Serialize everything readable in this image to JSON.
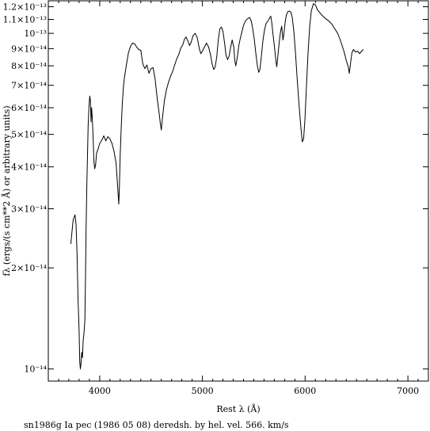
{
  "chart_data": {
    "type": "line",
    "title": "",
    "caption": "sn1986g Ia pec (1986 05 08) deredsh. by hel. vel.   566. km/s",
    "xlabel": "Rest λ (Å)",
    "ylabel": "fλ (ergs/(s cm**2 Å) or arbitrary units)",
    "x_scale": "linear",
    "y_scale": "log",
    "xlim": [
      3500,
      7200
    ],
    "ylim": [
      9.2e-15,
      1.25e-13
    ],
    "x_ticks": [
      {
        "value": 4000,
        "label": "4000"
      },
      {
        "value": 5000,
        "label": "5000"
      },
      {
        "value": 6000,
        "label": "6000"
      },
      {
        "value": 7000,
        "label": "7000"
      }
    ],
    "y_ticks": [
      {
        "value": 1e-14,
        "label": "10⁻¹⁴"
      },
      {
        "value": 2e-14,
        "label": "2×10⁻¹⁴"
      },
      {
        "value": 3e-14,
        "label": "3×10⁻¹⁴"
      },
      {
        "value": 4e-14,
        "label": "4×10⁻¹⁴"
      },
      {
        "value": 5e-14,
        "label": "5×10⁻¹⁴"
      },
      {
        "value": 6e-14,
        "label": "6×10⁻¹⁴"
      },
      {
        "value": 7e-14,
        "label": "7×10⁻¹⁴"
      },
      {
        "value": 8e-14,
        "label": "8×10⁻¹⁴"
      },
      {
        "value": 9e-14,
        "label": "9×10⁻¹⁴"
      },
      {
        "value": 1e-13,
        "label": "10⁻¹³"
      },
      {
        "value": 1.1e-13,
        "label": "1.1×10⁻¹³"
      },
      {
        "value": 1.2e-13,
        "label": "1.2×10⁻¹³"
      }
    ],
    "series": [
      {
        "color": "#000000",
        "points": [
          [
            3720,
            2.36e-14
          ],
          [
            3730,
            2.55e-14
          ],
          [
            3742,
            2.78e-14
          ],
          [
            3750,
            2.82e-14
          ],
          [
            3760,
            2.88e-14
          ],
          [
            3770,
            2.7e-14
          ],
          [
            3780,
            2.2e-14
          ],
          [
            3790,
            1.6e-14
          ],
          [
            3800,
            1.3e-14
          ],
          [
            3806,
            1.05e-14
          ],
          [
            3812,
            1e-14
          ],
          [
            3818,
            1.04e-14
          ],
          [
            3825,
            1.12e-14
          ],
          [
            3832,
            1.08e-14
          ],
          [
            3840,
            1.22e-14
          ],
          [
            3848,
            1.28e-14
          ],
          [
            3856,
            1.4e-14
          ],
          [
            3862,
            1.9e-14
          ],
          [
            3868,
            2.6e-14
          ],
          [
            3875,
            3.5e-14
          ],
          [
            3882,
            4.45e-14
          ],
          [
            3888,
            5.3e-14
          ],
          [
            3896,
            6.1e-14
          ],
          [
            3904,
            6.5e-14
          ],
          [
            3910,
            6.28e-14
          ],
          [
            3916,
            5.45e-14
          ],
          [
            3922,
            6e-14
          ],
          [
            3928,
            5.6e-14
          ],
          [
            3936,
            4.9e-14
          ],
          [
            3944,
            4.15e-14
          ],
          [
            3952,
            3.95e-14
          ],
          [
            3960,
            4.05e-14
          ],
          [
            3970,
            4.4e-14
          ],
          [
            3985,
            4.52e-14
          ],
          [
            4000,
            4.7e-14
          ],
          [
            4020,
            4.8e-14
          ],
          [
            4040,
            4.95e-14
          ],
          [
            4060,
            4.78e-14
          ],
          [
            4080,
            4.92e-14
          ],
          [
            4100,
            4.85e-14
          ],
          [
            4120,
            4.7e-14
          ],
          [
            4140,
            4.45e-14
          ],
          [
            4160,
            4.1e-14
          ],
          [
            4172,
            3.6e-14
          ],
          [
            4180,
            3.3e-14
          ],
          [
            4186,
            3.1e-14
          ],
          [
            4192,
            3.5e-14
          ],
          [
            4200,
            4.35e-14
          ],
          [
            4210,
            5.25e-14
          ],
          [
            4220,
            6.15e-14
          ],
          [
            4230,
            6.85e-14
          ],
          [
            4240,
            7.35e-14
          ],
          [
            4260,
            8.05e-14
          ],
          [
            4280,
            8.75e-14
          ],
          [
            4300,
            9.15e-14
          ],
          [
            4320,
            9.35e-14
          ],
          [
            4340,
            9.3e-14
          ],
          [
            4360,
            9.1e-14
          ],
          [
            4380,
            8.95e-14
          ],
          [
            4400,
            8.9e-14
          ],
          [
            4420,
            8.1e-14
          ],
          [
            4440,
            7.85e-14
          ],
          [
            4460,
            8.05e-14
          ],
          [
            4480,
            7.6e-14
          ],
          [
            4500,
            7.85e-14
          ],
          [
            4520,
            7.9e-14
          ],
          [
            4540,
            7.3e-14
          ],
          [
            4560,
            6.4e-14
          ],
          [
            4580,
            5.75e-14
          ],
          [
            4590,
            5.4e-14
          ],
          [
            4600,
            5.15e-14
          ],
          [
            4610,
            5.55e-14
          ],
          [
            4630,
            6.3e-14
          ],
          [
            4650,
            6.8e-14
          ],
          [
            4670,
            7.15e-14
          ],
          [
            4690,
            7.45e-14
          ],
          [
            4710,
            7.7e-14
          ],
          [
            4730,
            8.05e-14
          ],
          [
            4750,
            8.4e-14
          ],
          [
            4770,
            8.65e-14
          ],
          [
            4790,
            9.05e-14
          ],
          [
            4810,
            9.25e-14
          ],
          [
            4825,
            9.6e-14
          ],
          [
            4840,
            9.75e-14
          ],
          [
            4858,
            9.5e-14
          ],
          [
            4875,
            9.2e-14
          ],
          [
            4890,
            9.4e-14
          ],
          [
            4910,
            9.85e-14
          ],
          [
            4930,
            1e-13
          ],
          [
            4950,
            9.7e-14
          ],
          [
            4970,
            9e-14
          ],
          [
            4985,
            8.7e-14
          ],
          [
            5000,
            8.85e-14
          ],
          [
            5020,
            9.1e-14
          ],
          [
            5040,
            9.35e-14
          ],
          [
            5060,
            9.1e-14
          ],
          [
            5080,
            8.6e-14
          ],
          [
            5095,
            8.1e-14
          ],
          [
            5110,
            7.8e-14
          ],
          [
            5125,
            7.95e-14
          ],
          [
            5140,
            8.55e-14
          ],
          [
            5155,
            9.6e-14
          ],
          [
            5170,
            1.03e-13
          ],
          [
            5185,
            1.045e-13
          ],
          [
            5200,
            1.015e-13
          ],
          [
            5215,
            9.4e-14
          ],
          [
            5230,
            8.6e-14
          ],
          [
            5245,
            8.35e-14
          ],
          [
            5260,
            8.55e-14
          ],
          [
            5275,
            9.1e-14
          ],
          [
            5290,
            9.55e-14
          ],
          [
            5305,
            9.1e-14
          ],
          [
            5315,
            8.3e-14
          ],
          [
            5325,
            8e-14
          ],
          [
            5340,
            8.5e-14
          ],
          [
            5355,
            9.2e-14
          ],
          [
            5370,
            9.7e-14
          ],
          [
            5385,
            1.01e-13
          ],
          [
            5400,
            1.055e-13
          ],
          [
            5420,
            1.09e-13
          ],
          [
            5440,
            1.105e-13
          ],
          [
            5460,
            1.115e-13
          ],
          [
            5475,
            1.09e-13
          ],
          [
            5490,
            1.03e-13
          ],
          [
            5505,
            9.6e-14
          ],
          [
            5520,
            8.7e-14
          ],
          [
            5535,
            8e-14
          ],
          [
            5548,
            7.65e-14
          ],
          [
            5560,
            7.8e-14
          ],
          [
            5575,
            8.6e-14
          ],
          [
            5590,
            9.55e-14
          ],
          [
            5605,
            1.025e-13
          ],
          [
            5620,
            1.07e-13
          ],
          [
            5635,
            1.085e-13
          ],
          [
            5650,
            1.105e-13
          ],
          [
            5665,
            1.125e-13
          ],
          [
            5675,
            1.075e-13
          ],
          [
            5685,
            1.005e-13
          ],
          [
            5700,
            9.2e-14
          ],
          [
            5712,
            8.45e-14
          ],
          [
            5724,
            7.95e-14
          ],
          [
            5735,
            8.55e-14
          ],
          [
            5748,
            9.4e-14
          ],
          [
            5760,
            1.01e-13
          ],
          [
            5772,
            1.05e-13
          ],
          [
            5784,
            9.55e-14
          ],
          [
            5794,
            1e-13
          ],
          [
            5806,
            1.085e-13
          ],
          [
            5818,
            1.135e-13
          ],
          [
            5832,
            1.16e-13
          ],
          [
            5848,
            1.165e-13
          ],
          [
            5862,
            1.155e-13
          ],
          [
            5876,
            1.11e-13
          ],
          [
            5890,
            1.01e-13
          ],
          [
            5905,
            8.85e-14
          ],
          [
            5920,
            7.55e-14
          ],
          [
            5935,
            6.45e-14
          ],
          [
            5950,
            5.65e-14
          ],
          [
            5962,
            5.1e-14
          ],
          [
            5972,
            4.75e-14
          ],
          [
            5985,
            4.85e-14
          ],
          [
            5998,
            5.55e-14
          ],
          [
            6012,
            6.9e-14
          ],
          [
            6028,
            8.75e-14
          ],
          [
            6045,
            1.055e-13
          ],
          [
            6060,
            1.165e-13
          ],
          [
            6080,
            1.225e-13
          ],
          [
            6100,
            1.215e-13
          ],
          [
            6120,
            1.175e-13
          ],
          [
            6140,
            1.155e-13
          ],
          [
            6160,
            1.135e-13
          ],
          [
            6180,
            1.12e-13
          ],
          [
            6200,
            1.105e-13
          ],
          [
            6220,
            1.095e-13
          ],
          [
            6240,
            1.08e-13
          ],
          [
            6260,
            1.065e-13
          ],
          [
            6280,
            1.04e-13
          ],
          [
            6300,
            1.02e-13
          ],
          [
            6320,
            9.95e-14
          ],
          [
            6340,
            9.6e-14
          ],
          [
            6360,
            9.2e-14
          ],
          [
            6380,
            8.8e-14
          ],
          [
            6400,
            8.3e-14
          ],
          [
            6420,
            7.95e-14
          ],
          [
            6430,
            7.6e-14
          ],
          [
            6440,
            8.05e-14
          ],
          [
            6455,
            8.75e-14
          ],
          [
            6470,
            8.95e-14
          ],
          [
            6490,
            8.8e-14
          ],
          [
            6510,
            8.85e-14
          ],
          [
            6530,
            8.7e-14
          ],
          [
            6550,
            8.85e-14
          ],
          [
            6565,
            8.95e-14
          ]
        ]
      }
    ],
    "grid": false,
    "legend": "none"
  }
}
